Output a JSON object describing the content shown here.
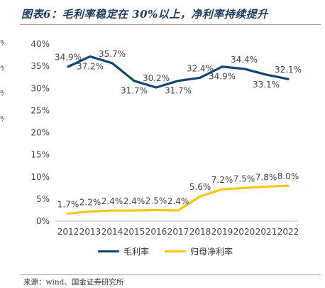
{
  "title": "图表6：毛利率稳定在 30%以上，净利率持续提升",
  "source": "来源：wind、国金证券研究所",
  "edge_fragments": [
    "%",
    "%",
    "%",
    "%"
  ],
  "chart_data": {
    "type": "line",
    "title": "图表6：毛利率稳定在 30%以上，净利率持续提升",
    "xlabel": "",
    "ylabel": "",
    "ylim": [
      0,
      40
    ],
    "yticks": [
      "0%",
      "5%",
      "10%",
      "15%",
      "20%",
      "25%",
      "30%",
      "35%",
      "40%"
    ],
    "categories": [
      "2012",
      "2013",
      "2014",
      "2015",
      "2016",
      "2017",
      "2018",
      "2019",
      "2020",
      "2021",
      "2022"
    ],
    "legend_position": "bottom",
    "grid": false,
    "series": [
      {
        "name": "毛利率",
        "color": "#13486b",
        "values": [
          34.9,
          37.2,
          35.7,
          31.7,
          30.2,
          31.7,
          32.4,
          34.9,
          34.4,
          33.1,
          32.1
        ],
        "labels": [
          "34.9%",
          "37.2%",
          "35.7%",
          "31.7%",
          "30.2%",
          "31.7%",
          "32.4%",
          "34.9%",
          "34.4%",
          "33.1%",
          "32.1%"
        ],
        "label_side": [
          "above",
          "below",
          "above",
          "below",
          "above",
          "below",
          "above",
          "below",
          "above",
          "below",
          "above"
        ]
      },
      {
        "name": "归母净利率",
        "color": "#f5c518",
        "values": [
          1.7,
          2.2,
          2.4,
          2.4,
          2.5,
          2.4,
          5.6,
          7.2,
          7.5,
          7.8,
          8.0
        ],
        "labels": [
          "1.7%",
          "2.2%",
          "2.4%",
          "2.4%",
          "2.5%",
          "2.4%",
          "5.6%",
          "7.2%",
          "7.5%",
          "7.8%",
          "8.0%"
        ],
        "label_side": [
          "above",
          "above",
          "above",
          "above",
          "above",
          "above",
          "above",
          "above",
          "above",
          "above",
          "above"
        ]
      }
    ]
  }
}
